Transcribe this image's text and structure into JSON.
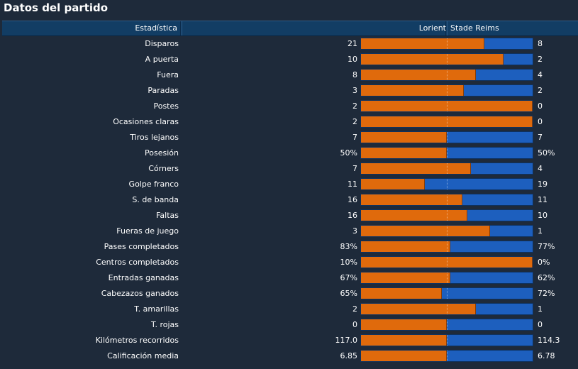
{
  "title": "Datos del partido",
  "header": {
    "stat_label": "Estadística",
    "home_team": "Lorient",
    "away_team": "Stade Reims"
  },
  "colors": {
    "home": "#e06a0c",
    "away": "#1d5fbe",
    "background": "#1e2a3a",
    "header": "#123d64"
  },
  "stats": [
    {
      "label": "Disparos",
      "home": "21",
      "away": "8",
      "home_share": 0.72
    },
    {
      "label": "A puerta",
      "home": "10",
      "away": "2",
      "home_share": 0.83
    },
    {
      "label": "Fuera",
      "home": "8",
      "away": "4",
      "home_share": 0.67
    },
    {
      "label": "Paradas",
      "home": "3",
      "away": "2",
      "home_share": 0.6
    },
    {
      "label": "Postes",
      "home": "2",
      "away": "0",
      "home_share": 1.0
    },
    {
      "label": "Ocasiones claras",
      "home": "2",
      "away": "0",
      "home_share": 1.0
    },
    {
      "label": "Tiros lejanos",
      "home": "7",
      "away": "7",
      "home_share": 0.5
    },
    {
      "label": "Posesión",
      "home": "50%",
      "away": "50%",
      "home_share": 0.5
    },
    {
      "label": "Córners",
      "home": "7",
      "away": "4",
      "home_share": 0.64
    },
    {
      "label": "Golpe franco",
      "home": "11",
      "away": "19",
      "home_share": 0.37
    },
    {
      "label": "S. de banda",
      "home": "16",
      "away": "11",
      "home_share": 0.59
    },
    {
      "label": "Faltas",
      "home": "16",
      "away": "10",
      "home_share": 0.62
    },
    {
      "label": "Fueras de juego",
      "home": "3",
      "away": "1",
      "home_share": 0.75
    },
    {
      "label": "Pases completados",
      "home": "83%",
      "away": "77%",
      "home_share": 0.52
    },
    {
      "label": "Centros completados",
      "home": "10%",
      "away": "0%",
      "home_share": 1.0
    },
    {
      "label": "Entradas ganadas",
      "home": "67%",
      "away": "62%",
      "home_share": 0.52
    },
    {
      "label": "Cabezazos ganados",
      "home": "65%",
      "away": "72%",
      "home_share": 0.47
    },
    {
      "label": "T. amarillas",
      "home": "2",
      "away": "1",
      "home_share": 0.67
    },
    {
      "label": "T. rojas",
      "home": "0",
      "away": "0",
      "home_share": 0.5
    },
    {
      "label": "Kilómetros recorridos",
      "home": "117.0",
      "away": "114.3",
      "home_share": 0.5
    },
    {
      "label": "Calificación media",
      "home": "6.85",
      "away": "6.78",
      "home_share": 0.5
    }
  ]
}
